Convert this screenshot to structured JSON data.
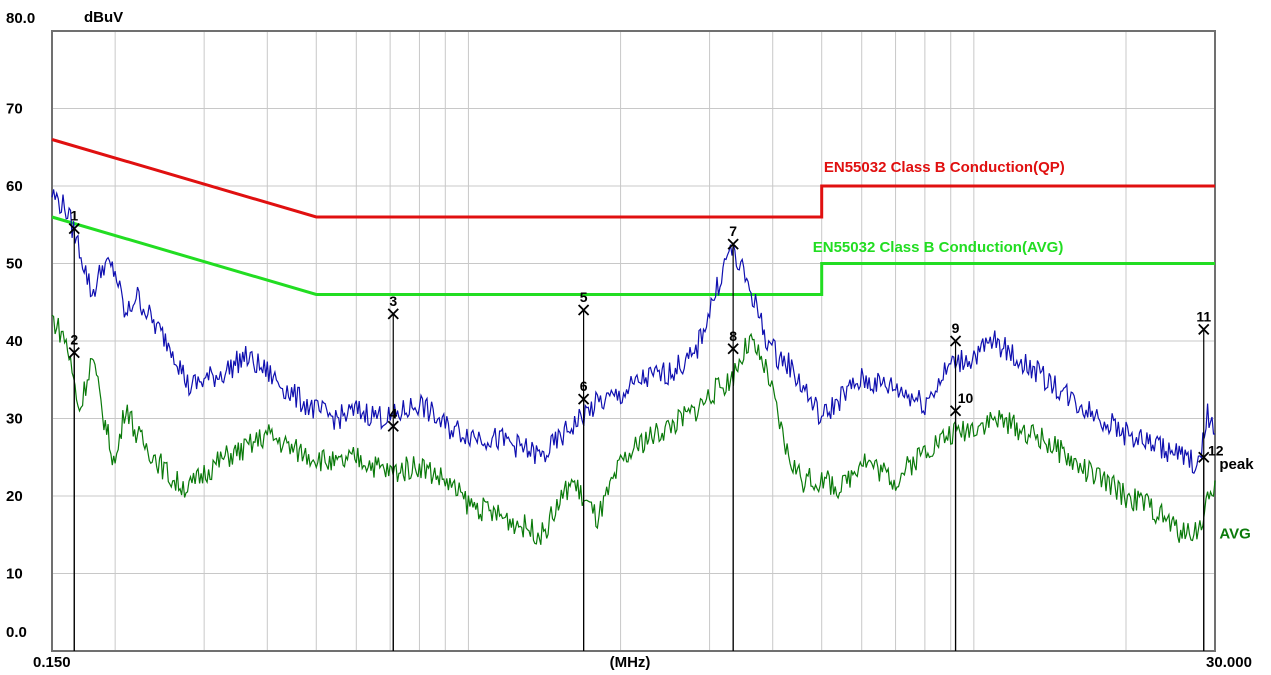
{
  "chart_data": {
    "type": "line",
    "ylabel": "dBuV",
    "xlabel": "(MHz)",
    "x_scale": "log",
    "xlim": [
      0.15,
      30.0
    ],
    "ylim": [
      0.0,
      80.0
    ],
    "grid": true,
    "y_ticks": [
      {
        "value": 80,
        "label": "80.0"
      },
      {
        "value": 70,
        "label": "70"
      },
      {
        "value": 60,
        "label": "60"
      },
      {
        "value": 50,
        "label": "50"
      },
      {
        "value": 40,
        "label": "40"
      },
      {
        "value": 30,
        "label": "30"
      },
      {
        "value": 20,
        "label": "20"
      },
      {
        "value": 10,
        "label": "10"
      },
      {
        "value": 0,
        "label": "0.0"
      }
    ],
    "x_ticks": [
      {
        "value": 0.15,
        "label": "0.150"
      },
      {
        "value": 30.0,
        "label": "30.000"
      }
    ],
    "colors": {
      "qp_limit": "#e01010",
      "avg_limit": "#22dd22",
      "peak_trace": "#1010b0",
      "avg_trace": "#0a7a0a",
      "grid": "#c8c8c8"
    },
    "series": [
      {
        "name": "EN55032 Class B Conduction(QP)",
        "role": "limit",
        "color": "#e01010",
        "x": [
          0.15,
          0.5,
          0.5,
          5.0,
          5.0,
          30.0
        ],
        "y": [
          66,
          56,
          56,
          56,
          60,
          60
        ]
      },
      {
        "name": "EN55032 Class B Conduction(AVG)",
        "role": "limit",
        "color": "#22dd22",
        "x": [
          0.15,
          0.5,
          0.5,
          5.0,
          5.0,
          30.0
        ],
        "y": [
          56,
          46,
          46,
          46,
          50,
          50
        ]
      },
      {
        "name": "peak",
        "role": "trace",
        "color": "#1010b0",
        "x": [
          0.15,
          0.16,
          0.17,
          0.18,
          0.19,
          0.2,
          0.21,
          0.22,
          0.24,
          0.26,
          0.28,
          0.3,
          0.33,
          0.36,
          0.4,
          0.45,
          0.5,
          0.55,
          0.6,
          0.7,
          0.8,
          0.9,
          1.0,
          1.2,
          1.4,
          1.6,
          1.8,
          2.0,
          2.2,
          2.5,
          2.8,
          3.0,
          3.3,
          3.6,
          3.9,
          4.1,
          4.3,
          4.6,
          5.0,
          5.5,
          6.0,
          7.0,
          8.0,
          9.0,
          10.0,
          11.0,
          12.0,
          14.0,
          16.0,
          18.0,
          20.0,
          22.0,
          24.0,
          26.0,
          28.0,
          29.0,
          30.0
        ],
        "y": [
          59,
          57,
          52,
          46,
          50,
          49,
          43,
          46,
          42,
          39,
          34,
          35,
          36,
          38,
          36,
          33,
          31,
          30,
          31,
          30,
          32,
          29,
          28,
          27,
          25,
          29,
          32,
          33,
          35,
          36,
          38,
          44,
          52,
          47,
          40,
          38,
          37,
          34,
          30,
          33,
          35,
          34,
          32,
          37,
          38,
          40,
          38,
          35,
          32,
          30,
          28,
          27,
          26,
          25,
          24,
          31,
          28
        ]
      },
      {
        "name": "AVG",
        "role": "trace",
        "color": "#0a7a0a",
        "x": [
          0.15,
          0.16,
          0.17,
          0.18,
          0.19,
          0.2,
          0.21,
          0.22,
          0.24,
          0.26,
          0.28,
          0.3,
          0.33,
          0.36,
          0.4,
          0.45,
          0.5,
          0.55,
          0.6,
          0.7,
          0.8,
          0.9,
          1.0,
          1.2,
          1.4,
          1.6,
          1.8,
          2.0,
          2.2,
          2.5,
          2.8,
          3.0,
          3.3,
          3.6,
          3.9,
          4.1,
          4.3,
          4.6,
          5.0,
          5.5,
          6.0,
          7.0,
          8.0,
          9.0,
          10.0,
          11.0,
          12.0,
          14.0,
          16.0,
          18.0,
          20.0,
          22.0,
          24.0,
          26.0,
          28.0,
          29.0,
          30.0
        ],
        "y": [
          43,
          40,
          31,
          38,
          30,
          24,
          32,
          28,
          25,
          22,
          21,
          23,
          25,
          26,
          28,
          26,
          25,
          24,
          25,
          23,
          24,
          22,
          19,
          17,
          15,
          22,
          17,
          24,
          27,
          29,
          31,
          33,
          35,
          40,
          36,
          30,
          25,
          22,
          22,
          21,
          25,
          22,
          26,
          28,
          29,
          30,
          29,
          27,
          24,
          22,
          20,
          19,
          17,
          15,
          16,
          19,
          22
        ]
      }
    ],
    "series_labels": [
      {
        "series": 0,
        "text": "EN55032 Class B Conduction(QP)",
        "x": 5.05,
        "y": 61.8
      },
      {
        "series": 1,
        "text": "EN55032 Class B Conduction(AVG)",
        "x": 4.8,
        "y": 51.5
      },
      {
        "series": 2,
        "text": "peak",
        "x": 30.6,
        "y": 23.5
      },
      {
        "series": 3,
        "text": "AVG",
        "x": 30.6,
        "y": 14.5
      }
    ],
    "markers": [
      {
        "label": "1",
        "x": 0.166,
        "y": 54.5
      },
      {
        "label": "2",
        "x": 0.166,
        "y": 38.5
      },
      {
        "label": "3",
        "x": 0.71,
        "y": 43.5
      },
      {
        "label": "4",
        "x": 0.71,
        "y": 29
      },
      {
        "label": "5",
        "x": 1.69,
        "y": 44
      },
      {
        "label": "6",
        "x": 1.69,
        "y": 32.5
      },
      {
        "label": "7",
        "x": 3.34,
        "y": 52.5
      },
      {
        "label": "8",
        "x": 3.34,
        "y": 39
      },
      {
        "label": "9",
        "x": 9.2,
        "y": 40
      },
      {
        "label": "10",
        "x": 9.2,
        "y": 31
      },
      {
        "label": "11",
        "x": 28.5,
        "y": 41.5
      },
      {
        "label": "12",
        "x": 28.5,
        "y": 25
      }
    ]
  }
}
